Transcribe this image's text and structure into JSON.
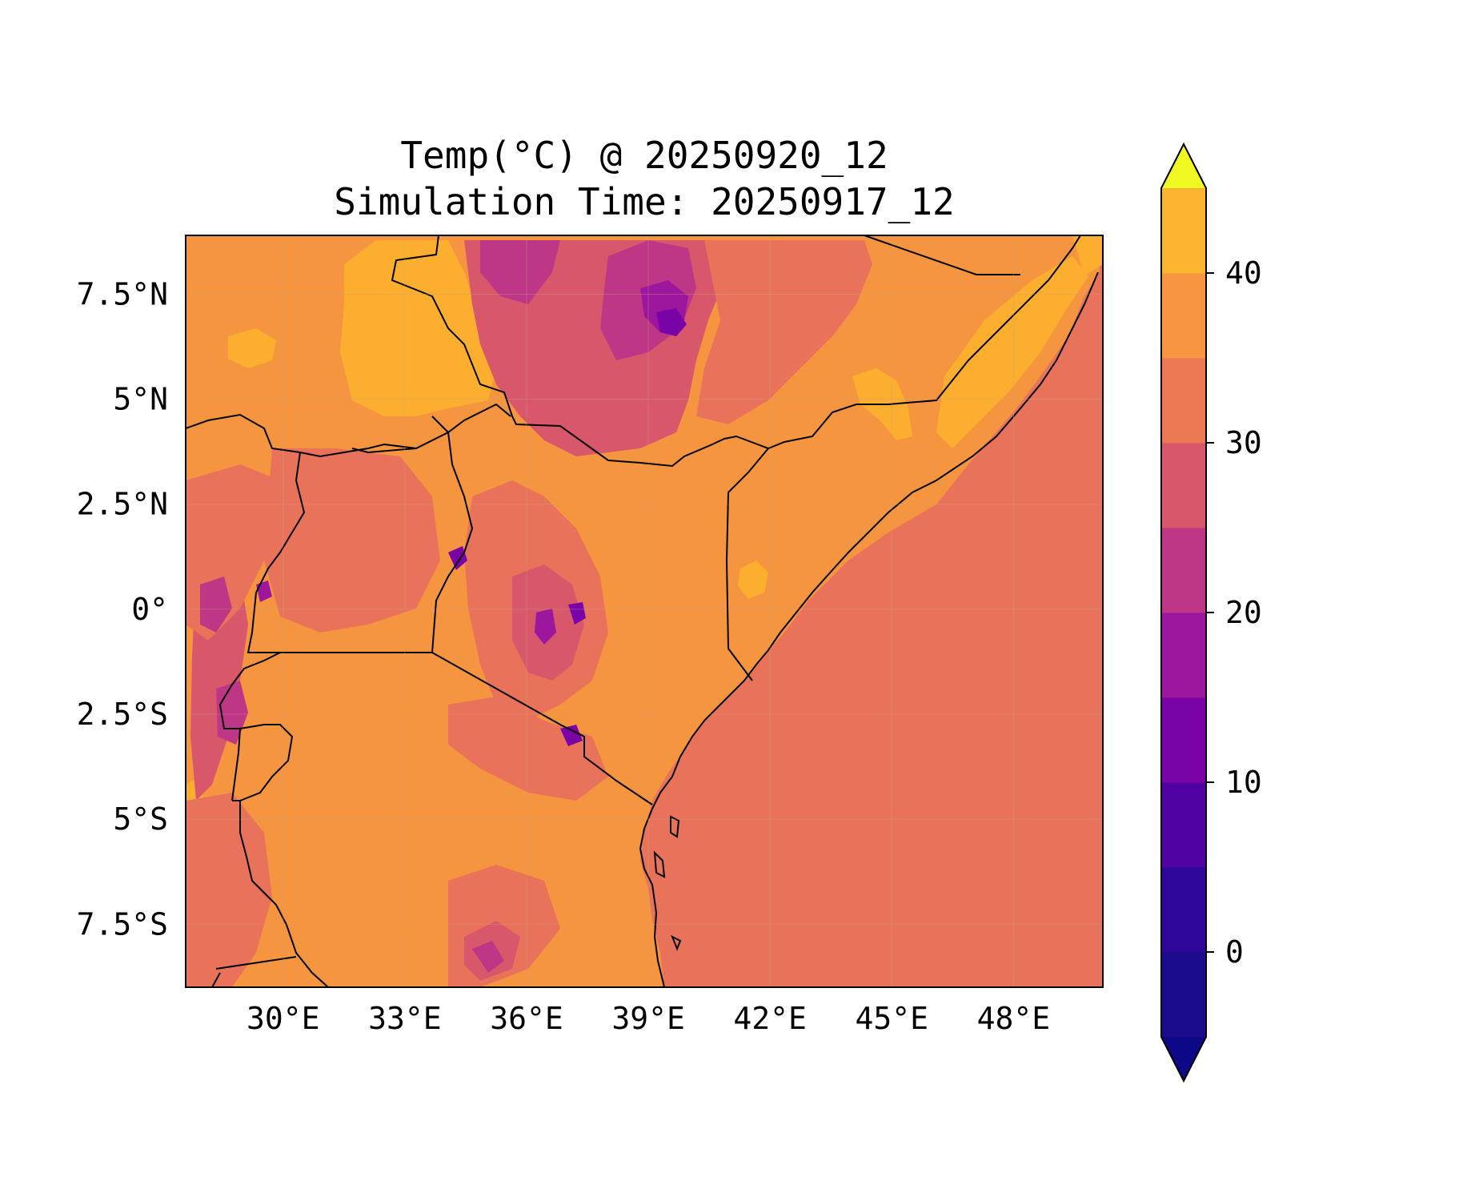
{
  "title": {
    "line1": "Temp(°C) @ 20250920_12",
    "line2": "Simulation Time: 20250917_12"
  },
  "map": {
    "lon_range": [
      27.6,
      50.2
    ],
    "lat_range": [
      -9.0,
      8.9
    ],
    "x_ticks": [
      "30°E",
      "33°E",
      "36°E",
      "39°E",
      "42°E",
      "45°E",
      "48°E"
    ],
    "y_ticks": [
      "7.5°N",
      "5°N",
      "2.5°N",
      "0°",
      "2.5°S",
      "5°S",
      "7.5°S"
    ],
    "ocean_color": "#e8735a",
    "land_color": "#f5953f"
  },
  "colorbar": {
    "ticks": [
      "0",
      "10",
      "20",
      "30",
      "40"
    ],
    "range": [
      -5,
      45
    ],
    "extend": "both",
    "colors": [
      "#1a0a8c",
      "#2e069a",
      "#5102a3",
      "#7a03a8",
      "#9c179e",
      "#bd3786",
      "#d8576b",
      "#ed7953",
      "#f89540",
      "#fdb42f",
      "#f0f921"
    ],
    "levels": [
      -5,
      0,
      5,
      10,
      15,
      20,
      25,
      30,
      35,
      40,
      45
    ]
  }
}
